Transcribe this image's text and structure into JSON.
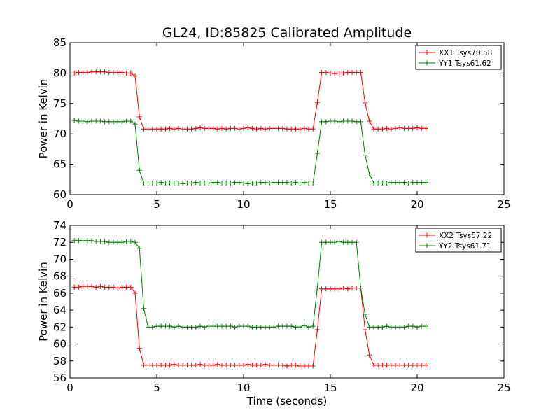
{
  "figure": {
    "title": "GL24, ID:85825 Calibrated Amplitude",
    "xlabel": "Time (seconds)"
  },
  "chart_data": [
    {
      "type": "line",
      "ylabel": "Power in Kelvin",
      "xlim": [
        0,
        25
      ],
      "ylim": [
        60,
        85
      ],
      "xticks": [
        0,
        5,
        10,
        15,
        20,
        25
      ],
      "yticks": [
        60,
        65,
        70,
        75,
        80,
        85
      ],
      "legend_position": "top-right",
      "series": [
        {
          "name": "XX1 Tsys70.58",
          "color": "#ff0000",
          "x": [
            0.25,
            0.5,
            0.75,
            1.0,
            1.25,
            1.5,
            1.75,
            2.0,
            2.25,
            2.5,
            2.75,
            3.0,
            3.25,
            3.5,
            3.75,
            4.0,
            4.25,
            4.5,
            4.75,
            5.0,
            5.25,
            5.5,
            5.75,
            6.0,
            6.25,
            6.5,
            6.75,
            7.0,
            7.25,
            7.5,
            7.75,
            8.0,
            8.25,
            8.5,
            8.75,
            9.0,
            9.25,
            9.5,
            9.75,
            10.0,
            10.25,
            10.5,
            10.75,
            11.0,
            11.25,
            11.5,
            11.75,
            12.0,
            12.25,
            12.5,
            12.75,
            13.0,
            13.25,
            13.5,
            13.75,
            14.0,
            14.25,
            14.5,
            14.75,
            15.0,
            15.25,
            15.5,
            15.75,
            16.0,
            16.25,
            16.5,
            16.75,
            17.0,
            17.25,
            17.5,
            17.75,
            18.0,
            18.25,
            18.5,
            18.75,
            19.0,
            19.25,
            19.5,
            19.75,
            20.0,
            20.25,
            20.5
          ],
          "y": [
            80.0,
            80.1,
            80.1,
            80.1,
            80.2,
            80.2,
            80.2,
            80.2,
            80.1,
            80.1,
            80.1,
            80.1,
            80.0,
            80.0,
            79.5,
            72.8,
            70.8,
            70.8,
            70.8,
            70.8,
            70.8,
            70.8,
            70.9,
            70.8,
            70.9,
            70.8,
            70.8,
            70.8,
            70.9,
            71.0,
            70.9,
            70.9,
            70.9,
            70.8,
            70.9,
            70.8,
            70.9,
            70.9,
            70.8,
            70.9,
            71.0,
            70.9,
            70.8,
            70.9,
            70.8,
            70.9,
            70.9,
            70.9,
            70.9,
            70.8,
            70.8,
            70.8,
            70.8,
            70.9,
            70.8,
            70.8,
            75.2,
            80.1,
            80.1,
            80.0,
            79.9,
            80.0,
            80.0,
            80.1,
            80.1,
            80.1,
            80.1,
            75.1,
            72.1,
            70.8,
            70.8,
            70.8,
            70.9,
            70.8,
            70.9,
            71.0,
            70.9,
            70.9,
            70.9,
            71.0,
            70.9,
            70.9
          ]
        },
        {
          "name": "YY1 Tsys61.62",
          "color": "#008000",
          "x": [
            0.25,
            0.5,
            0.75,
            1.0,
            1.25,
            1.5,
            1.75,
            2.0,
            2.25,
            2.5,
            2.75,
            3.0,
            3.25,
            3.5,
            3.75,
            4.0,
            4.25,
            4.5,
            4.75,
            5.0,
            5.25,
            5.5,
            5.75,
            6.0,
            6.25,
            6.5,
            6.75,
            7.0,
            7.25,
            7.5,
            7.75,
            8.0,
            8.25,
            8.5,
            8.75,
            9.0,
            9.25,
            9.5,
            9.75,
            10.0,
            10.25,
            10.5,
            10.75,
            11.0,
            11.25,
            11.5,
            11.75,
            12.0,
            12.25,
            12.5,
            12.75,
            13.0,
            13.25,
            13.5,
            13.75,
            14.0,
            14.25,
            14.5,
            14.75,
            15.0,
            15.25,
            15.5,
            15.75,
            16.0,
            16.25,
            16.5,
            16.75,
            17.0,
            17.25,
            17.5,
            17.75,
            18.0,
            18.25,
            18.5,
            18.75,
            19.0,
            19.25,
            19.5,
            19.75,
            20.0,
            20.25,
            20.5
          ],
          "y": [
            72.2,
            72.1,
            72.1,
            72.0,
            72.1,
            72.1,
            72.1,
            72.0,
            72.0,
            72.0,
            72.0,
            72.0,
            72.1,
            72.1,
            71.6,
            64.0,
            61.9,
            61.9,
            61.9,
            61.9,
            62.0,
            61.9,
            61.9,
            61.9,
            61.9,
            61.8,
            61.9,
            61.9,
            62.0,
            61.9,
            61.9,
            61.9,
            62.0,
            62.0,
            61.9,
            61.9,
            61.9,
            62.0,
            62.0,
            61.9,
            61.8,
            61.9,
            61.9,
            62.0,
            62.0,
            61.9,
            62.0,
            62.0,
            62.0,
            62.0,
            61.9,
            62.0,
            61.9,
            62.0,
            61.9,
            61.9,
            66.8,
            72.0,
            72.0,
            72.1,
            72.1,
            72.0,
            72.1,
            72.1,
            72.1,
            72.0,
            72.0,
            66.5,
            63.4,
            61.9,
            61.9,
            61.9,
            61.9,
            62.0,
            62.0,
            62.0,
            62.0,
            61.9,
            62.0,
            62.0,
            62.0,
            62.0
          ]
        }
      ]
    },
    {
      "type": "line",
      "ylabel": "Power in Kelvin",
      "xlim": [
        0,
        25
      ],
      "ylim": [
        56,
        74
      ],
      "xticks": [
        0,
        5,
        10,
        15,
        20,
        25
      ],
      "yticks": [
        56,
        58,
        60,
        62,
        64,
        66,
        68,
        70,
        72,
        74
      ],
      "legend_position": "top-right",
      "series": [
        {
          "name": "XX2 Tsys57.22",
          "color": "#ff0000",
          "x": [
            0.25,
            0.5,
            0.75,
            1.0,
            1.25,
            1.5,
            1.75,
            2.0,
            2.25,
            2.5,
            2.75,
            3.0,
            3.25,
            3.5,
            3.75,
            4.0,
            4.25,
            4.5,
            4.75,
            5.0,
            5.25,
            5.5,
            5.75,
            6.0,
            6.25,
            6.5,
            6.75,
            7.0,
            7.25,
            7.5,
            7.75,
            8.0,
            8.25,
            8.5,
            8.75,
            9.0,
            9.25,
            9.5,
            9.75,
            10.0,
            10.25,
            10.5,
            10.75,
            11.0,
            11.25,
            11.5,
            11.75,
            12.0,
            12.25,
            12.5,
            12.75,
            13.0,
            13.25,
            13.5,
            13.75,
            14.0,
            14.25,
            14.5,
            14.75,
            15.0,
            15.25,
            15.5,
            15.75,
            16.0,
            16.25,
            16.5,
            16.75,
            17.0,
            17.25,
            17.5,
            17.75,
            18.0,
            18.25,
            18.5,
            18.75,
            19.0,
            19.25,
            19.5,
            19.75,
            20.0,
            20.25,
            20.5
          ],
          "y": [
            66.7,
            66.7,
            66.8,
            66.8,
            66.8,
            66.7,
            66.8,
            66.7,
            66.7,
            66.7,
            66.6,
            66.7,
            66.7,
            66.7,
            66.0,
            59.5,
            57.5,
            57.5,
            57.5,
            57.5,
            57.5,
            57.5,
            57.5,
            57.6,
            57.5,
            57.5,
            57.5,
            57.5,
            57.5,
            57.6,
            57.5,
            57.5,
            57.5,
            57.6,
            57.5,
            57.5,
            57.5,
            57.5,
            57.5,
            57.5,
            57.6,
            57.5,
            57.5,
            57.5,
            57.6,
            57.5,
            57.5,
            57.5,
            57.5,
            57.4,
            57.5,
            57.5,
            57.4,
            57.4,
            57.4,
            57.4,
            61.7,
            66.5,
            66.5,
            66.5,
            66.5,
            66.5,
            66.6,
            66.5,
            66.6,
            66.6,
            66.6,
            61.7,
            58.7,
            57.5,
            57.5,
            57.5,
            57.5,
            57.5,
            57.5,
            57.5,
            57.5,
            57.5,
            57.5,
            57.5,
            57.5,
            57.5
          ]
        },
        {
          "name": "YY2 Tsys61.71",
          "color": "#008000",
          "x": [
            0.25,
            0.5,
            0.75,
            1.0,
            1.25,
            1.5,
            1.75,
            2.0,
            2.25,
            2.5,
            2.75,
            3.0,
            3.25,
            3.5,
            3.75,
            4.0,
            4.25,
            4.5,
            4.75,
            5.0,
            5.25,
            5.5,
            5.75,
            6.0,
            6.25,
            6.5,
            6.75,
            7.0,
            7.25,
            7.5,
            7.75,
            8.0,
            8.25,
            8.5,
            8.75,
            9.0,
            9.25,
            9.5,
            9.75,
            10.0,
            10.25,
            10.5,
            10.75,
            11.0,
            11.25,
            11.5,
            11.75,
            12.0,
            12.25,
            12.5,
            12.75,
            13.0,
            13.25,
            13.5,
            13.75,
            14.0,
            14.25,
            14.5,
            14.75,
            15.0,
            15.25,
            15.5,
            15.75,
            16.0,
            16.25,
            16.5,
            16.75,
            17.0,
            17.25,
            17.5,
            17.75,
            18.0,
            18.25,
            18.5,
            18.75,
            19.0,
            19.25,
            19.5,
            19.75,
            20.0,
            20.25,
            20.5
          ],
          "y": [
            72.2,
            72.2,
            72.2,
            72.2,
            72.2,
            72.1,
            72.1,
            72.1,
            72.0,
            72.0,
            72.0,
            72.0,
            72.1,
            72.1,
            72.0,
            71.3,
            64.2,
            62.0,
            62.0,
            62.1,
            62.1,
            62.1,
            62.1,
            62.0,
            62.1,
            62.0,
            62.0,
            62.0,
            62.0,
            62.1,
            62.0,
            62.1,
            62.1,
            62.1,
            62.1,
            62.1,
            62.1,
            62.0,
            62.1,
            62.1,
            62.1,
            62.0,
            62.0,
            62.0,
            62.0,
            62.0,
            62.0,
            62.1,
            62.1,
            62.1,
            62.1,
            62.0,
            62.0,
            62.2,
            62.0,
            62.1,
            66.6,
            72.0,
            72.0,
            72.0,
            72.0,
            72.1,
            72.0,
            72.0,
            72.0,
            72.0,
            66.6,
            63.5,
            62.0,
            62.0,
            62.0,
            62.0,
            62.1,
            62.0,
            62.0,
            62.0,
            62.0,
            62.1,
            62.1,
            62.0,
            62.1,
            62.1
          ]
        }
      ]
    }
  ]
}
